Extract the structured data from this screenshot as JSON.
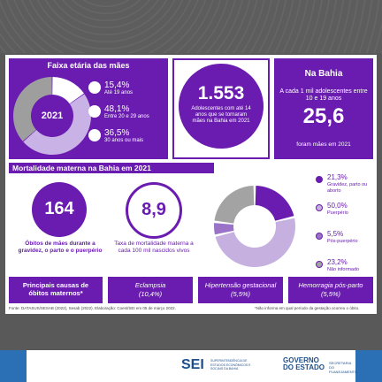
{
  "age": {
    "title": "Faixa etária das mães",
    "year": "2021",
    "items": [
      {
        "percent": {
          "value": 15.4,
          "label": "15,4%"
        },
        "label": "Até 19 anos",
        "color": "#ffffff"
      },
      {
        "percent": {
          "value": 48.1,
          "label": "48,1%"
        },
        "label": "Entre 20 e 29 anos",
        "color": "#c9b3e6"
      },
      {
        "percent": {
          "value": 36.5,
          "label": "36,5%"
        },
        "label": "30 anos ou mais",
        "color": "#9e9e9e"
      }
    ]
  },
  "teen": {
    "number": "1.553",
    "text": "Adolescentes com até 14 anos que se tornaram mães na Bahia em 2021"
  },
  "bahia": {
    "title": "Na Bahia",
    "text": "A cada 1 mil adolescentes entre 10 e 19 anos",
    "number": "25,6",
    "footer": "foram mães em 2021"
  },
  "mortality": {
    "title": "Mortalidade materna na Bahia em 2021",
    "deaths": {
      "number": "164",
      "text": "Óbitos de mães durante a gravidez, o parto e o puerpério"
    },
    "rate": {
      "number": "8,9",
      "text": "Taxa de mortalidade materna a cada 100 mil nascidos vivos"
    },
    "periods": [
      {
        "percent": {
          "value": 21.3,
          "label": "21,3%"
        },
        "label": "Gravidez, parto ou aborto",
        "color": "#6a1bb0"
      },
      {
        "percent": {
          "value": 50.0,
          "label": "50,0%"
        },
        "label": "Puerpério",
        "color": "#c5b0e0"
      },
      {
        "percent": {
          "value": 5.5,
          "label": "5,5%"
        },
        "label": "Pós-puerpério",
        "color": "#9a73c9"
      },
      {
        "percent": {
          "value": 23.2,
          "label": "23,2%"
        },
        "label": "Não informado",
        "color": "#a3a3a3"
      }
    ]
  },
  "causes": {
    "title": "Principais causas de óbitos maternos*",
    "items": [
      {
        "name": "Eclampsia",
        "percent": "(10,4%)"
      },
      {
        "name": "Hipertensão gestacional",
        "percent": "(5,5%)"
      },
      {
        "name": "Hemorragia pós-parto",
        "percent": "(5,5%)"
      }
    ]
  },
  "source": "Fonte: DATASUS/SESAB (2022), Sesab (2022). Elaboração: Coest/SEI em 05 de março 2022.",
  "note": "*Não informa em qual período da gestação ocorreu o óbito.",
  "footer": {
    "sei": "SEI",
    "sei_name": "SUPERINTENDÊNCIA DE ESTUDOS ECONÔMICOS E SOCIAIS DA BAHIA",
    "gov": "GOVERNO DO ESTADO",
    "sec": "SECRETARIA DO PLANEJAMENTO"
  }
}
